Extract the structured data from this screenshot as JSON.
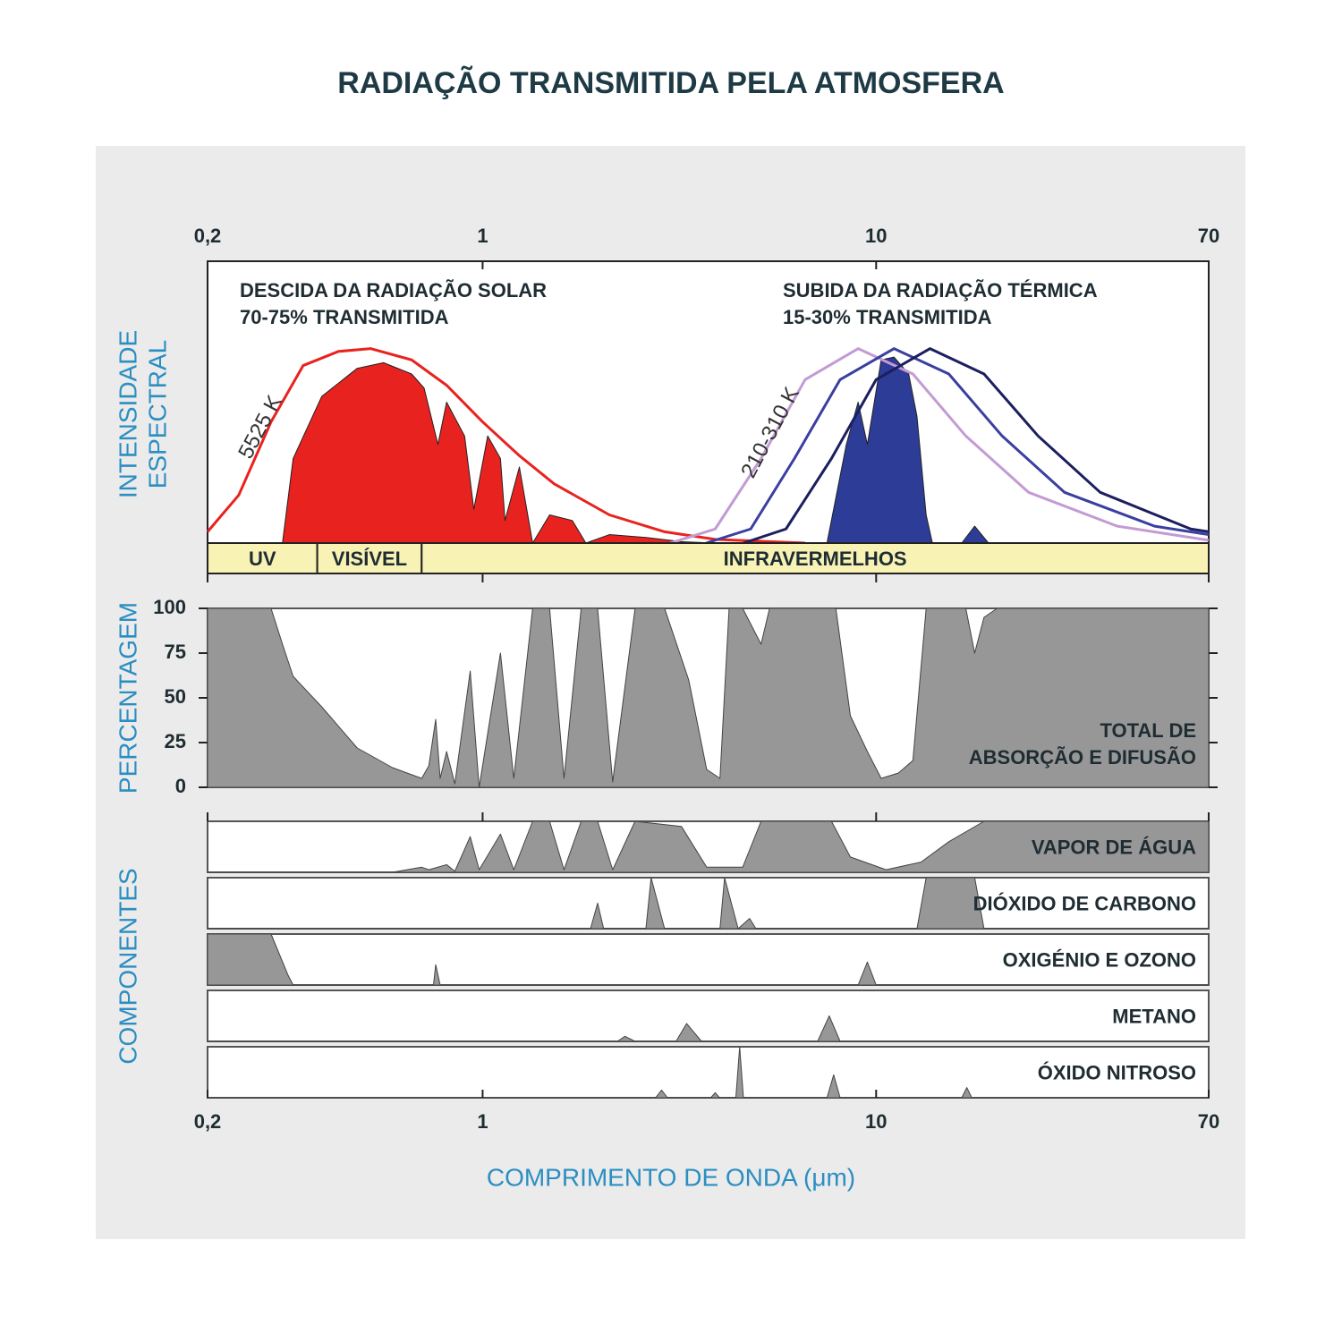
{
  "chart_data": [
    {
      "type": "area",
      "title": "RADIAÇÃO TRANSMITIDA PELA ATMOSFERA",
      "ylabel": [
        "INTENSIDADE",
        "ESPECTRAL"
      ],
      "xscale": "log",
      "xlim": [
        0.2,
        70
      ],
      "xticks": [
        {
          "value": 0.2,
          "label": "0,2"
        },
        1,
        10,
        70
      ],
      "ylim": [
        0,
        1
      ],
      "annotations": [
        [
          "DESCIDA DA RADIAÇÃO SOLAR",
          "70-75% TRANSMITIDA"
        ],
        [
          "SUBIDA DA RADIAÇÃO TÉRMICA",
          "15-30% TRANSMITIDA"
        ]
      ],
      "curve_label": "210-310 K",
      "band_color": "#f8f2b5",
      "bands": [
        {
          "label": "UV",
          "range": [
            0.2,
            0.38
          ]
        },
        {
          "label": "VISÍVEL",
          "range": [
            0.38,
            0.7
          ]
        },
        {
          "label": "INFRAVERMELHOS",
          "range": [
            0.7,
            70
          ]
        }
      ],
      "series": [
        {
          "style": "area",
          "color": "#e8231f",
          "x": [
            0.31,
            0.33,
            0.39,
            0.48,
            0.56,
            0.66,
            0.71,
            0.77,
            0.81,
            0.9,
            0.95,
            1.03,
            1.11,
            1.14,
            1.24,
            1.34,
            1.48,
            1.69,
            1.83,
            2.1,
            2.6,
            3.2,
            3.9
          ],
          "values": [
            0,
            0.3,
            0.52,
            0.62,
            0.64,
            0.6,
            0.55,
            0.35,
            0.5,
            0.38,
            0.12,
            0.38,
            0.3,
            0.08,
            0.27,
            0,
            0.1,
            0.08,
            0,
            0.03,
            0.02,
            0.005,
            0
          ]
        },
        {
          "style": "area",
          "color": "#2d3c97",
          "x": [
            7.5,
            8.4,
            9.0,
            9.5,
            10.3,
            11.1,
            12.1,
            12.7,
            13.4,
            13.9,
            16.5,
            17.8,
            19.3
          ],
          "values": [
            0,
            0.35,
            0.5,
            0.35,
            0.65,
            0.66,
            0.6,
            0.45,
            0.1,
            0,
            0,
            0.06,
            0
          ]
        },
        {
          "name": "5525 K",
          "style": "line",
          "color": "#e8231f",
          "x": [
            0.2,
            0.24,
            0.29,
            0.35,
            0.43,
            0.52,
            0.66,
            0.81,
            1.0,
            1.24,
            1.52,
            2.1,
            2.9,
            3.9,
            6.6
          ],
          "values": [
            0.04,
            0.17,
            0.43,
            0.63,
            0.68,
            0.69,
            0.65,
            0.56,
            0.43,
            0.31,
            0.21,
            0.1,
            0.04,
            0.013,
            0
          ]
        },
        {
          "style": "line",
          "color": "#c39bd3",
          "x": [
            3.0,
            3.9,
            5.1,
            6.6,
            9.0,
            12.4,
            16.9,
            24.4,
            41,
            70
          ],
          "values": [
            0,
            0.05,
            0.3,
            0.58,
            0.69,
            0.6,
            0.38,
            0.18,
            0.06,
            0.01
          ]
        },
        {
          "style": "line",
          "color": "#3a3fa0",
          "x": [
            3.7,
            4.8,
            6.2,
            8.1,
            11.1,
            15.3,
            20.9,
            30.1,
            51,
            70
          ],
          "values": [
            0,
            0.05,
            0.3,
            0.58,
            0.69,
            0.6,
            0.38,
            0.18,
            0.06,
            0.03
          ]
        },
        {
          "style": "line",
          "color": "#1c1f5e",
          "x": [
            4.6,
            5.9,
            7.7,
            10.0,
            13.7,
            18.8,
            25.8,
            37.1,
            63,
            70
          ],
          "values": [
            0,
            0.05,
            0.3,
            0.58,
            0.69,
            0.6,
            0.38,
            0.18,
            0.05,
            0.04
          ]
        }
      ]
    },
    {
      "type": "area",
      "ylabel": "PERCENTAGEM",
      "xscale": "log",
      "xlim": [
        0.2,
        70
      ],
      "ylim": [
        0,
        100
      ],
      "yticks": [
        0,
        25,
        50,
        75,
        100
      ],
      "annotation": [
        "TOTAL DE",
        "ABSORÇÃO E DIFUSÃO"
      ],
      "color": "#979797",
      "x": [
        0.2,
        0.29,
        0.31,
        0.33,
        0.39,
        0.48,
        0.59,
        0.7,
        0.73,
        0.76,
        0.78,
        0.81,
        0.85,
        0.93,
        0.98,
        1.11,
        1.2,
        1.34,
        1.48,
        1.61,
        1.78,
        1.96,
        2.14,
        2.44,
        2.9,
        3.34,
        3.71,
        4.01,
        4.23,
        4.58,
        5.1,
        5.36,
        7.9,
        8.6,
        9.5,
        10.3,
        11.4,
        12.4,
        13.4,
        16.9,
        17.8,
        18.8,
        20.3,
        70
      ],
      "values": [
        100,
        100,
        80,
        62,
        45,
        22,
        11,
        5,
        12,
        38,
        5,
        20,
        2,
        65,
        0,
        75,
        5,
        100,
        100,
        5,
        100,
        100,
        3,
        100,
        100,
        60,
        10,
        5,
        100,
        100,
        80,
        100,
        100,
        40,
        20,
        5,
        8,
        15,
        100,
        100,
        75,
        95,
        100,
        100
      ]
    },
    {
      "type": "area",
      "ylabel": "COMPONENTES",
      "xlabel": "COMPRIMENTO DE ONDA (μm)",
      "xscale": "log",
      "xlim": [
        0.2,
        70
      ],
      "xticks": [
        {
          "value": 0.2,
          "label": "0,2"
        },
        1,
        10,
        70
      ],
      "ylim": [
        0,
        1
      ],
      "series": [
        {
          "name": "VAPOR DE ÁGUA",
          "color": "#979797",
          "x": [
            0.2,
            0.59,
            0.7,
            0.73,
            0.81,
            0.85,
            0.93,
            0.98,
            1.11,
            1.2,
            1.34,
            1.48,
            1.61,
            1.78,
            1.96,
            2.14,
            2.44,
            3.2,
            3.71,
            4.58,
            5.1,
            7.7,
            8.6,
            10.6,
            13.0,
            15.3,
            18.8,
            70
          ],
          "values": [
            0,
            0,
            0.1,
            0.05,
            0.15,
            0.02,
            0.7,
            0.05,
            0.75,
            0.05,
            1,
            1,
            0.05,
            1,
            1,
            0.05,
            1,
            0.9,
            0.1,
            0.1,
            1,
            1,
            0.3,
            0.05,
            0.2,
            0.6,
            1,
            1
          ]
        },
        {
          "name": "DIÓXIDO DE CARBONO",
          "color": "#979797",
          "x": [
            0.2,
            1.88,
            1.96,
            2.03,
            2.6,
            2.68,
            2.9,
            4.01,
            4.12,
            4.46,
            4.77,
            4.95,
            12.7,
            13.4,
            17.8,
            18.8,
            70
          ],
          "values": [
            0,
            0,
            0.5,
            0,
            0,
            1,
            0,
            0,
            1,
            0,
            0.2,
            0,
            0,
            1,
            1,
            0,
            0
          ]
        },
        {
          "name": "OXIGÉNIO E OZONO",
          "color": "#979797",
          "x": [
            0.2,
            0.29,
            0.32,
            0.33,
            0.75,
            0.76,
            0.78,
            9.0,
            9.5,
            10.0,
            70
          ],
          "values": [
            1,
            1,
            0.2,
            0,
            0,
            0.4,
            0,
            0,
            0.45,
            0,
            0
          ]
        },
        {
          "name": "METANO",
          "color": "#979797",
          "x": [
            0.2,
            2.2,
            2.3,
            2.44,
            3.1,
            3.3,
            3.6,
            7.1,
            7.6,
            8.1,
            70
          ],
          "values": [
            0,
            0,
            0.1,
            0,
            0,
            0.35,
            0,
            0,
            0.5,
            0,
            0
          ]
        },
        {
          "name": "ÓXIDO NITROSO",
          "color": "#979797",
          "x": [
            0.2,
            2.75,
            2.85,
            2.95,
            3.8,
            3.9,
            4.0,
            4.4,
            4.5,
            4.6,
            7.5,
            7.8,
            8.1,
            16.5,
            17.0,
            17.5,
            70
          ],
          "values": [
            0,
            0,
            0.15,
            0,
            0,
            0.1,
            0,
            0,
            1,
            0,
            0,
            0.45,
            0,
            0,
            0.2,
            0,
            0
          ]
        }
      ]
    }
  ]
}
